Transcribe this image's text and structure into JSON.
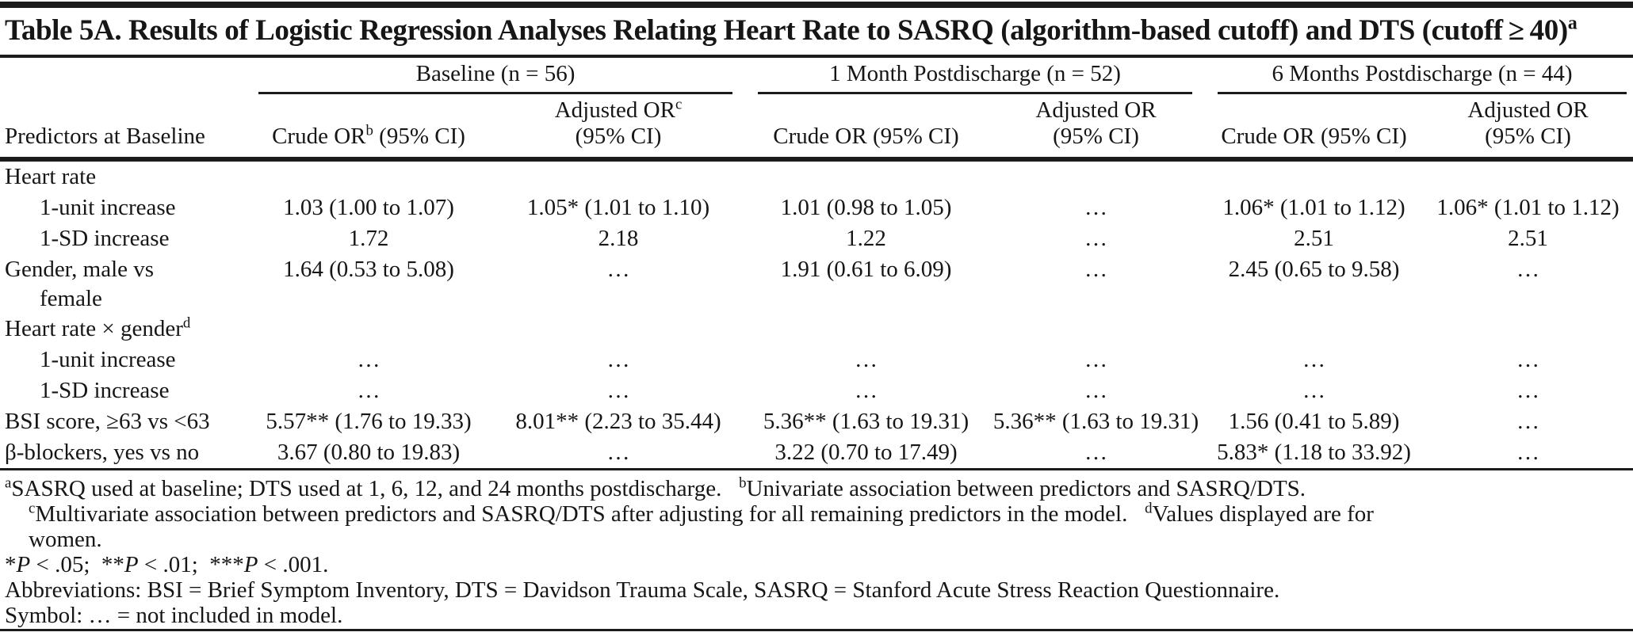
{
  "title": "Table 5A. Results of Logistic Regression Analyses Relating Heart Rate to SASRQ (algorithm-based cutoff) and DTS (cutoff ≥ 40)^{a}",
  "table": {
    "stub_header": "Predictors at Baseline",
    "groups": [
      {
        "label": "Baseline (n = 56)"
      },
      {
        "label": "1 Month Postdischarge (n = 52)"
      },
      {
        "label": "6 Months Postdischarge (n = 44)"
      }
    ],
    "subheaders": [
      "Crude OR^{b} (95% CI)",
      "Adjusted OR^{c}\n(95% CI)",
      "Crude OR (95% CI)",
      "Adjusted OR\n(95% CI)",
      "Crude OR (95% CI)",
      "Adjusted OR\n(95% CI)"
    ],
    "rows": [
      {
        "label": "Heart rate",
        "cells": [
          "",
          "",
          "",
          "",
          "",
          ""
        ]
      },
      {
        "label": "1-unit increase",
        "cells": [
          "1.03 (1.00 to 1.07)",
          "1.05* (1.01 to 1.10)",
          "1.01 (0.98 to 1.05)",
          "…",
          "1.06* (1.01 to 1.12)",
          "1.06* (1.01 to 1.12)"
        ]
      },
      {
        "label": "1-SD increase",
        "cells": [
          "1.72",
          "2.18",
          "1.22",
          "…",
          "2.51",
          "2.51"
        ]
      },
      {
        "label": "Gender, male vs\nfemale",
        "cells": [
          "1.64 (0.53 to 5.08)",
          "…",
          "1.91 (0.61 to 6.09)",
          "…",
          "2.45 (0.65 to 9.58)",
          "…"
        ]
      },
      {
        "label": "Heart rate × gender^{d}",
        "cells": [
          "",
          "",
          "",
          "",
          "",
          ""
        ]
      },
      {
        "label": "1-unit increase",
        "cells": [
          "…",
          "…",
          "…",
          "…",
          "…",
          "…"
        ]
      },
      {
        "label": "1-SD increase",
        "cells": [
          "…",
          "…",
          "…",
          "…",
          "…",
          "…"
        ]
      },
      {
        "label": "BSI score, ≥63 vs <63",
        "cells": [
          "5.57** (1.76 to 19.33)",
          "8.01** (2.23 to 35.44)",
          "5.36** (1.63 to 19.31)",
          "5.36** (1.63 to 19.31)",
          "1.56 (0.41 to 5.89)",
          "…"
        ]
      },
      {
        "label": "β-blockers, yes vs no",
        "cells": [
          "3.67 (0.80 to 19.83)",
          "…",
          "3.22 (0.70 to 17.49)",
          "…",
          "5.83* (1.18 to 33.92)",
          "…"
        ]
      }
    ]
  },
  "footnotes": {
    "ab": "^{a}SASRQ used at baseline; DTS used at 1, 6, 12, and 24 months postdischarge.   ^{b}Univariate association between predictors and SASRQ/DTS.",
    "cd": "^{c}Multivariate association between predictors and SASRQ/DTS after adjusting for all remaining predictors in the model.   ^{d}Values displayed are for\nwomen.",
    "pvalues": "*/{P} < .05;  **/{P} < .01;  ***/{P} < .001.",
    "abbreviations": "Abbreviations: BSI = Brief Symptom Inventory, DTS = Davidson Trauma Scale, SASRQ = Stanford Acute Stress Reaction Questionnaire.",
    "symbol": "Symbol: … = not included in model."
  },
  "colors": {
    "rule": "#1b1b1b",
    "text": "#161616",
    "background": "#ffffff"
  }
}
